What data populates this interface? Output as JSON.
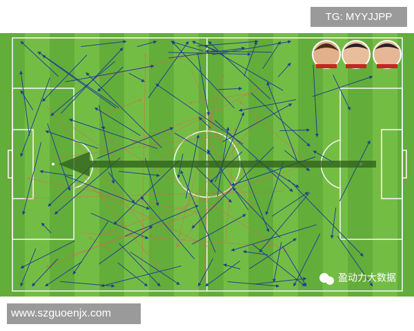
{
  "header": {
    "tag": "TG: MYYJJPP"
  },
  "pitch": {
    "watermark": "盈动力大数据"
  },
  "footer": {
    "url": "www.szguoenjx.com"
  }
}
